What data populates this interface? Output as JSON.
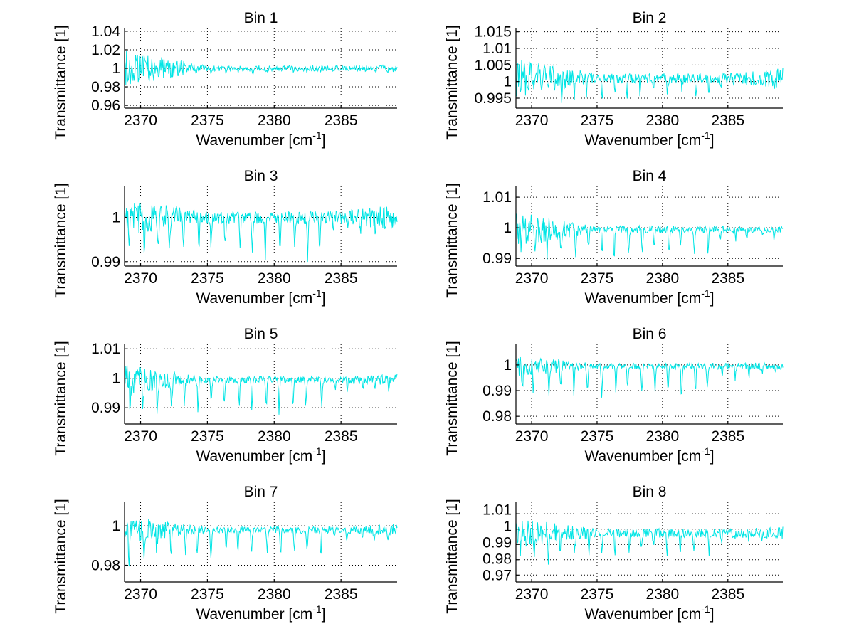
{
  "figure": {
    "line_color": "#00e5e5",
    "background": "#ffffff"
  },
  "chart_data": [
    {
      "type": "line",
      "title": "Bin 1",
      "xlabel": "Wavenumber [cm",
      "xlabel_sup": "-1",
      "xlabel_end": "]",
      "ylabel": "Transmittance [1]",
      "xlim": [
        2368.8,
        2389.2
      ],
      "ylim": [
        0.957,
        1.043
      ],
      "xticks": [
        2370,
        2375,
        2380,
        2385
      ],
      "xtick_labels": [
        "2370",
        "2375",
        "2380",
        "2385"
      ],
      "yticks": [
        0.96,
        0.98,
        1,
        1.02,
        1.04
      ],
      "ytick_labels": [
        "0.96",
        "0.98",
        "1",
        "1.02",
        "1.04"
      ],
      "grid": true,
      "series": [
        {
          "name": "Bin 1",
          "seed": 11,
          "baseline": 1.0,
          "noise_start": 0.02,
          "noise_end": 0.003,
          "dip_depth": 0.004,
          "noise_tail": 0.004
        }
      ]
    },
    {
      "type": "line",
      "title": "Bin 2",
      "xlabel": "Wavenumber [cm",
      "xlabel_sup": "-1",
      "xlabel_end": "]",
      "ylabel": "Transmittance [1]",
      "xlim": [
        2368.8,
        2389.2
      ],
      "ylim": [
        0.992,
        1.016
      ],
      "xticks": [
        2370,
        2375,
        2380,
        2385
      ],
      "xtick_labels": [
        "2370",
        "2375",
        "2380",
        "2385"
      ],
      "yticks": [
        0.995,
        1,
        1.005,
        1.01,
        1.015
      ],
      "ytick_labels": [
        "0.995",
        "1",
        "1.005",
        "1.01",
        "1.015"
      ],
      "grid": true,
      "series": [
        {
          "name": "Bin 2",
          "seed": 22,
          "baseline": 1.001,
          "noise_start": 0.006,
          "noise_end": 0.0015,
          "dip_depth": 0.006,
          "noise_tail": 0.003
        }
      ]
    },
    {
      "type": "line",
      "title": "Bin 3",
      "xlabel": "Wavenumber [cm",
      "xlabel_sup": "-1",
      "xlabel_end": "]",
      "ylabel": "Transmittance [1]",
      "xlim": [
        2368.8,
        2389.2
      ],
      "ylim": [
        0.989,
        1.007
      ],
      "xticks": [
        2370,
        2375,
        2380,
        2385
      ],
      "xtick_labels": [
        "2370",
        "2375",
        "2380",
        "2385"
      ],
      "yticks": [
        0.99,
        1
      ],
      "ytick_labels": [
        "0.99",
        "1"
      ],
      "grid": true,
      "series": [
        {
          "name": "Bin 3",
          "seed": 33,
          "baseline": 1.0,
          "noise_start": 0.004,
          "noise_end": 0.0015,
          "dip_depth": 0.009,
          "noise_tail": 0.003
        }
      ]
    },
    {
      "type": "line",
      "title": "Bin 4",
      "xlabel": "Wavenumber [cm",
      "xlabel_sup": "-1",
      "xlabel_end": "]",
      "ylabel": "Transmittance [1]",
      "xlim": [
        2368.8,
        2389.2
      ],
      "ylim": [
        0.9875,
        1.0135
      ],
      "xticks": [
        2370,
        2375,
        2380,
        2385
      ],
      "xtick_labels": [
        "2370",
        "2375",
        "2380",
        "2385"
      ],
      "yticks": [
        0.99,
        1,
        1.01
      ],
      "ytick_labels": [
        "0.99",
        "1",
        "1.01"
      ],
      "grid": true,
      "series": [
        {
          "name": "Bin 4",
          "seed": 44,
          "baseline": 0.9995,
          "noise_start": 0.006,
          "noise_end": 0.0012,
          "dip_depth": 0.01,
          "noise_tail": 0.001
        }
      ]
    },
    {
      "type": "line",
      "title": "Bin 5",
      "xlabel": "Wavenumber [cm",
      "xlabel_sup": "-1",
      "xlabel_end": "]",
      "ylabel": "Transmittance [1]",
      "xlim": [
        2368.8,
        2389.2
      ],
      "ylim": [
        0.9845,
        1.0115
      ],
      "xticks": [
        2370,
        2375,
        2380,
        2385
      ],
      "xtick_labels": [
        "2370",
        "2375",
        "2380",
        "2385"
      ],
      "yticks": [
        0.99,
        1,
        1.01
      ],
      "ytick_labels": [
        "0.99",
        "1",
        "1.01"
      ],
      "grid": true,
      "series": [
        {
          "name": "Bin 5",
          "seed": 55,
          "baseline": 0.9995,
          "noise_start": 0.005,
          "noise_end": 0.0012,
          "dip_depth": 0.012,
          "noise_tail": 0.002
        }
      ]
    },
    {
      "type": "line",
      "title": "Bin 6",
      "xlabel": "Wavenumber [cm",
      "xlabel_sup": "-1",
      "xlabel_end": "]",
      "ylabel": "Transmittance [1]",
      "xlim": [
        2368.8,
        2389.2
      ],
      "ylim": [
        0.977,
        1.008
      ],
      "xticks": [
        2370,
        2375,
        2380,
        2385
      ],
      "xtick_labels": [
        "2370",
        "2375",
        "2380",
        "2385"
      ],
      "yticks": [
        0.98,
        0.99,
        1
      ],
      "ytick_labels": [
        "0.98",
        "0.99",
        "1"
      ],
      "grid": true,
      "series": [
        {
          "name": "Bin 6",
          "seed": 66,
          "baseline": 0.9995,
          "noise_start": 0.004,
          "noise_end": 0.0012,
          "dip_depth": 0.013,
          "noise_tail": 0.0015
        }
      ]
    },
    {
      "type": "line",
      "title": "Bin 7",
      "xlabel": "Wavenumber [cm",
      "xlabel_sup": "-1",
      "xlabel_end": "]",
      "ylabel": "Transmittance [1]",
      "xlim": [
        2368.8,
        2389.2
      ],
      "ylim": [
        0.9715,
        1.012
      ],
      "xticks": [
        2370,
        2375,
        2380,
        2385
      ],
      "xtick_labels": [
        "2370",
        "2375",
        "2380",
        "2385"
      ],
      "yticks": [
        0.98,
        1
      ],
      "ytick_labels": [
        "0.98",
        "1"
      ],
      "grid": true,
      "series": [
        {
          "name": "Bin 7",
          "seed": 77,
          "baseline": 0.998,
          "noise_start": 0.007,
          "noise_end": 0.0018,
          "dip_depth": 0.016,
          "noise_tail": 0.003
        }
      ]
    },
    {
      "type": "line",
      "title": "Bin 8",
      "xlabel": "Wavenumber [cm",
      "xlabel_sup": "-1",
      "xlabel_end": "]",
      "ylabel": "Transmittance [1]",
      "xlim": [
        2368.8,
        2389.2
      ],
      "ylim": [
        0.9655,
        1.0175
      ],
      "xticks": [
        2370,
        2375,
        2380,
        2385
      ],
      "xtick_labels": [
        "2370",
        "2375",
        "2380",
        "2385"
      ],
      "yticks": [
        0.97,
        0.98,
        0.99,
        1,
        1.01
      ],
      "ytick_labels": [
        "0.97",
        "0.98",
        "0.99",
        "1",
        "1.01"
      ],
      "grid": true,
      "series": [
        {
          "name": "Bin 8",
          "seed": 88,
          "baseline": 0.9975,
          "noise_start": 0.01,
          "noise_end": 0.003,
          "dip_depth": 0.014,
          "noise_tail": 0.004
        }
      ]
    }
  ]
}
